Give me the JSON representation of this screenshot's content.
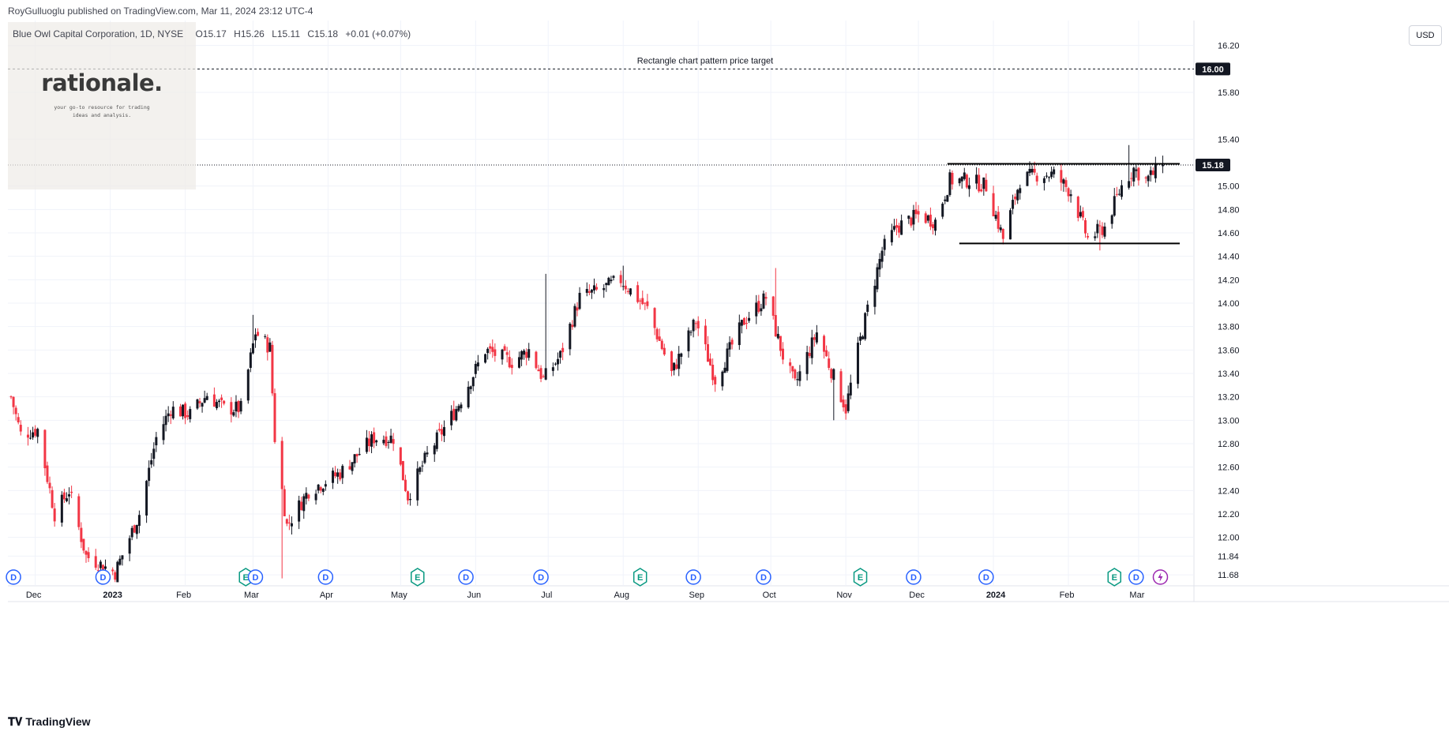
{
  "header": {
    "published_line": "RoyGulluoglu published on TradingView.com, Mar 11, 2024 23:12 UTC-4"
  },
  "legend": {
    "symbol": "Blue Owl Capital Corporation, 1D, NYSE",
    "open": "O15.17",
    "high": "H15.26",
    "low": "L15.11",
    "close": "C15.18",
    "change": "+0.01 (+0.07%)"
  },
  "watermark": {
    "title": "rationale.",
    "subtitle_line1": "your go-to resource for trading",
    "subtitle_line2": "ideas and analysis."
  },
  "currency_button": "USD",
  "footer": {
    "brand": "TradingView",
    "brand_icon": "tradingview-logo-icon"
  },
  "colors": {
    "up": "#131722",
    "down": "#f23645",
    "grid": "#f0f3fa",
    "label_bg": "#131722",
    "event_blue": "#2962ff",
    "event_green": "#089981",
    "event_purple": "#9c27b0"
  },
  "chart_data": {
    "type": "candlestick",
    "title": "Blue Owl Capital Corporation, 1D, NYSE",
    "ylabel": "USD",
    "ylim": [
      11.6,
      16.4
    ],
    "y_ticks": [
      "16.20",
      "15.80",
      "15.40",
      "15.00",
      "14.80",
      "14.60",
      "14.40",
      "14.20",
      "14.00",
      "13.80",
      "13.60",
      "13.40",
      "13.20",
      "13.00",
      "12.80",
      "12.60",
      "12.40",
      "12.20",
      "12.00",
      "11.84",
      "11.68"
    ],
    "x_ticks": [
      {
        "label": "Dec",
        "bold": false
      },
      {
        "label": "2023",
        "bold": true
      },
      {
        "label": "Feb",
        "bold": false
      },
      {
        "label": "Mar",
        "bold": false
      },
      {
        "label": "Apr",
        "bold": false
      },
      {
        "label": "May",
        "bold": false
      },
      {
        "label": "Jun",
        "bold": false
      },
      {
        "label": "Jul",
        "bold": false
      },
      {
        "label": "Aug",
        "bold": false
      },
      {
        "label": "Sep",
        "bold": false
      },
      {
        "label": "Oct",
        "bold": false
      },
      {
        "label": "Nov",
        "bold": false
      },
      {
        "label": "Dec",
        "bold": false
      },
      {
        "label": "2024",
        "bold": true
      },
      {
        "label": "Feb",
        "bold": false
      },
      {
        "label": "Mar",
        "bold": false
      }
    ],
    "anchors": [
      {
        "date": "2022-11-21",
        "close": 13.2
      },
      {
        "date": "2022-11-25",
        "close": 12.88
      },
      {
        "date": "2022-12-02",
        "close": 12.92
      },
      {
        "date": "2022-12-09",
        "close": 12.2
      },
      {
        "date": "2022-12-15",
        "close": 12.4
      },
      {
        "date": "2022-12-22",
        "close": 11.84
      },
      {
        "date": "2023-01-03",
        "close": 11.7
      },
      {
        "date": "2023-01-13",
        "close": 12.2
      },
      {
        "date": "2023-01-20",
        "close": 12.85
      },
      {
        "date": "2023-01-26",
        "close": 13.1
      },
      {
        "date": "2023-02-03",
        "close": 13.05
      },
      {
        "date": "2023-02-10",
        "close": 13.22
      },
      {
        "date": "2023-02-17",
        "close": 13.1
      },
      {
        "date": "2023-02-24",
        "close": 13.1
      },
      {
        "date": "2023-03-02",
        "close": 13.75
      },
      {
        "date": "2023-03-08",
        "close": 13.62
      },
      {
        "date": "2023-03-10",
        "close": 12.85
      },
      {
        "date": "2023-03-15",
        "close": 12.1
      },
      {
        "date": "2023-03-24",
        "close": 12.4
      },
      {
        "date": "2023-04-06",
        "close": 12.55
      },
      {
        "date": "2023-04-20",
        "close": 12.85
      },
      {
        "date": "2023-04-28",
        "close": 12.85
      },
      {
        "date": "2023-05-04",
        "close": 12.35
      },
      {
        "date": "2023-05-12",
        "close": 12.7
      },
      {
        "date": "2023-05-24",
        "close": 13.1
      },
      {
        "date": "2023-06-05",
        "close": 13.6
      },
      {
        "date": "2023-06-16",
        "close": 13.5
      },
      {
        "date": "2023-06-23",
        "close": 13.6
      },
      {
        "date": "2023-06-29",
        "close": 13.35
      },
      {
        "date": "2023-07-06",
        "close": 13.55
      },
      {
        "date": "2023-07-14",
        "close": 14.05
      },
      {
        "date": "2023-07-21",
        "close": 14.1
      },
      {
        "date": "2023-07-31",
        "close": 14.2
      },
      {
        "date": "2023-08-11",
        "close": 13.95
      },
      {
        "date": "2023-08-21",
        "close": 13.4
      },
      {
        "date": "2023-08-31",
        "close": 13.85
      },
      {
        "date": "2023-09-08",
        "close": 13.35
      },
      {
        "date": "2023-09-20",
        "close": 13.85
      },
      {
        "date": "2023-09-29",
        "close": 14.05
      },
      {
        "date": "2023-10-06",
        "close": 13.55
      },
      {
        "date": "2023-10-11",
        "close": 13.3
      },
      {
        "date": "2023-10-20",
        "close": 13.75
      },
      {
        "date": "2023-11-01",
        "close": 13.1
      },
      {
        "date": "2023-11-06",
        "close": 13.6
      },
      {
        "date": "2023-11-10",
        "close": 13.95
      },
      {
        "date": "2023-11-16",
        "close": 14.45
      },
      {
        "date": "2023-11-22",
        "close": 14.65
      },
      {
        "date": "2023-12-01",
        "close": 14.75
      },
      {
        "date": "2023-12-08",
        "close": 14.7
      },
      {
        "date": "2023-12-14",
        "close": 15.05
      },
      {
        "date": "2023-12-22",
        "close": 15.05
      },
      {
        "date": "2023-12-29",
        "close": 15.0
      },
      {
        "date": "2024-01-05",
        "close": 14.55
      },
      {
        "date": "2024-01-12",
        "close": 15.05
      },
      {
        "date": "2024-01-19",
        "close": 15.1
      },
      {
        "date": "2024-01-26",
        "close": 15.1
      },
      {
        "date": "2024-02-02",
        "close": 14.95
      },
      {
        "date": "2024-02-09",
        "close": 14.55
      },
      {
        "date": "2024-02-16",
        "close": 14.65
      },
      {
        "date": "2024-02-23",
        "close": 15.0
      },
      {
        "date": "2024-02-28",
        "close": 15.15
      },
      {
        "date": "2024-03-04",
        "close": 15.05
      },
      {
        "date": "2024-03-11",
        "close": 15.18
      }
    ],
    "notable_wicks": [
      {
        "date": "2023-03-01",
        "high": 13.9
      },
      {
        "date": "2023-03-13",
        "low": 11.65
      },
      {
        "date": "2023-06-30",
        "high": 14.25
      },
      {
        "date": "2023-08-01",
        "high": 14.32
      },
      {
        "date": "2023-10-03",
        "high": 14.3
      },
      {
        "date": "2023-10-27",
        "low": 13.0
      },
      {
        "date": "2024-02-14",
        "low": 14.45
      },
      {
        "date": "2024-02-26",
        "high": 15.35
      }
    ],
    "last_price": "15.18",
    "price_target": "16.00",
    "annotation": "Rectangle chart pattern price target",
    "pattern_levels": {
      "resistance": 15.19,
      "support": 14.51,
      "start": "2023-12-13",
      "end": "2024-03-18"
    },
    "events": [
      {
        "date": "2022-11-22",
        "type": "D"
      },
      {
        "date": "2022-12-29",
        "type": "D"
      },
      {
        "date": "2023-02-26",
        "type": "E"
      },
      {
        "date": "2023-03-02",
        "type": "D"
      },
      {
        "date": "2023-03-31",
        "type": "D"
      },
      {
        "date": "2023-05-08",
        "type": "E"
      },
      {
        "date": "2023-05-28",
        "type": "D"
      },
      {
        "date": "2023-06-28",
        "type": "D"
      },
      {
        "date": "2023-08-08",
        "type": "E"
      },
      {
        "date": "2023-08-30",
        "type": "D"
      },
      {
        "date": "2023-09-28",
        "type": "D"
      },
      {
        "date": "2023-11-07",
        "type": "E"
      },
      {
        "date": "2023-11-29",
        "type": "D"
      },
      {
        "date": "2023-12-29",
        "type": "D"
      },
      {
        "date": "2024-02-20",
        "type": "E"
      },
      {
        "date": "2024-02-29",
        "type": "D"
      },
      {
        "date": "2024-03-10",
        "type": "S"
      }
    ],
    "grid": true,
    "scale": "linear"
  }
}
